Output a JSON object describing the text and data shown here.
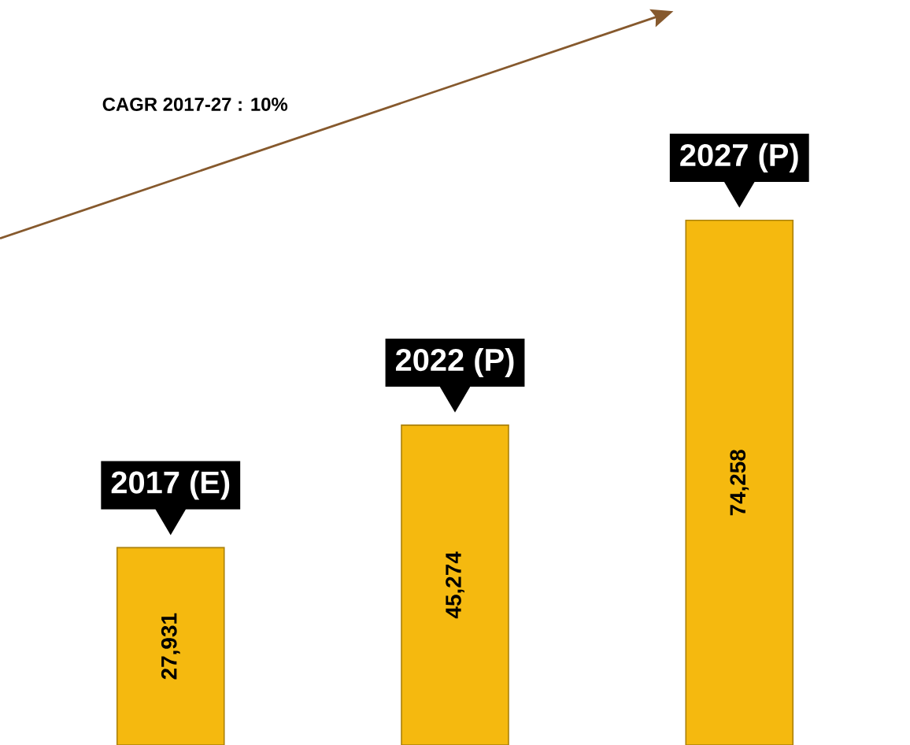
{
  "chart_data": {
    "type": "bar",
    "categories": [
      "2017 (E)",
      "2022 (P)",
      "2027 (P)"
    ],
    "values": [
      27931,
      45274,
      74258
    ],
    "value_labels": [
      "27,931",
      "45,274",
      "74,258"
    ],
    "color": "#f5b90f",
    "annotations": [
      "CAGR 2017-27 : 10%"
    ]
  }
}
